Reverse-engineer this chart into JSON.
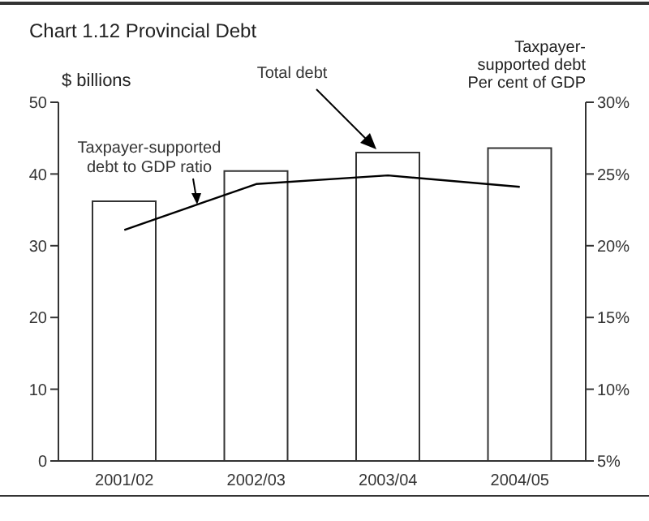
{
  "chart_data": {
    "type": "bar",
    "title": "Chart 1.12 Provincial Debt",
    "ylabel": "$ billions",
    "y2label": "Taxpayer-\nsupported debt\nPer cent of GDP",
    "categories": [
      "2001/02",
      "2002/03",
      "2003/04",
      "2004/05"
    ],
    "series": [
      {
        "color": "#ffffff",
        "values": [
          36.2,
          40.4,
          43.0,
          43.6
        ]
      },
      {
        "type": "line",
        "axis": "y2",
        "color": "#000000",
        "values": [
          21.1,
          24.3,
          24.9,
          24.1
        ]
      }
    ],
    "ylim": [
      0,
      50
    ],
    "yticks": [
      0,
      10,
      20,
      30,
      40,
      50
    ],
    "y2lim": [
      5,
      30
    ],
    "y2ticks": [
      {
        "value": 5,
        "label": "5%"
      },
      {
        "value": 10,
        "label": "10%"
      },
      {
        "value": 15,
        "label": "15%"
      },
      {
        "value": 20,
        "label": "20%"
      },
      {
        "value": 25,
        "label": "25%"
      },
      {
        "value": 30,
        "label": "30%"
      }
    ],
    "annotations": [
      "Taxpayer-supported\ndebt to GDP ratio",
      "Total debt"
    ],
    "grid": false,
    "legend": false,
    "marker": "none"
  }
}
